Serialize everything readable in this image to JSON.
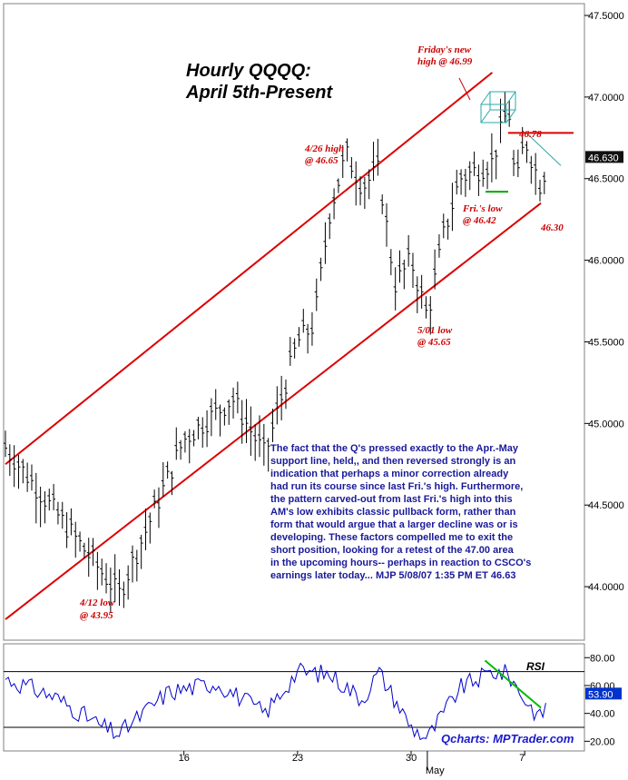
{
  "chart_data": [
    {
      "type": "candlestick",
      "title_line1": "Hourly QQQQ:",
      "title_line2": "April 5th-Present",
      "ylim": [
        43.7,
        47.55
      ],
      "y_ticks": [
        "47.5000",
        "47.0000",
        "46.5000",
        "46.0000",
        "45.5000",
        "45.0000",
        "44.5000",
        "44.0000"
      ],
      "y_tick_values": [
        47.5,
        47.0,
        46.5,
        46.0,
        45.5,
        45.0,
        44.5,
        44.0
      ],
      "x_ticks": [
        "16",
        "23",
        "30",
        "7"
      ],
      "x_month_label": "May",
      "last_price_label": "46.630",
      "last_price": 46.63,
      "annotations": [
        {
          "line1": "Friday's new",
          "line2": "high @ 46.99"
        },
        {
          "line1": "4/26 high",
          "line2": "@ 46.65"
        },
        {
          "line1": "46.78"
        },
        {
          "line1": "Fri.'s low",
          "line2": "@ 46.42"
        },
        {
          "line1": "46.30"
        },
        {
          "line1": "5/01 low",
          "line2": "@ 45.65"
        },
        {
          "line1": "4/12 low",
          "line2": "@ 43.95"
        }
      ],
      "anchors": [
        {
          "date": "Apr 5",
          "value": 44.85
        },
        {
          "date": "Apr 12",
          "value": 43.95
        },
        {
          "date": "Apr 16",
          "value": 44.9
        },
        {
          "date": "Apr 19",
          "value": 45.15
        },
        {
          "date": "Apr 21",
          "value": 44.8
        },
        {
          "date": "Apr 23",
          "value": 45.5
        },
        {
          "date": "Apr 24",
          "value": 45.6
        },
        {
          "date": "Apr 25",
          "value": 46.3
        },
        {
          "date": "Apr 26",
          "value": 46.65
        },
        {
          "date": "Apr 27",
          "value": 46.45
        },
        {
          "date": "Apr 28",
          "value": 46.55
        },
        {
          "date": "Apr 29",
          "value": 45.85
        },
        {
          "date": "Apr 30",
          "value": 46.0
        },
        {
          "date": "May 1",
          "value": 45.65
        },
        {
          "date": "May 2",
          "value": 46.15
        },
        {
          "date": "May 3",
          "value": 46.5
        },
        {
          "date": "May 5",
          "value": 46.6
        },
        {
          "date": "May 6",
          "value": 46.95
        },
        {
          "date": "May 6",
          "value": 46.42
        },
        {
          "date": "May 7",
          "value": 46.75
        },
        {
          "date": "May 8",
          "value": 46.45
        },
        {
          "date": "May 8",
          "value": 46.63
        }
      ],
      "channel_upper": [
        {
          "date": "Apr 5",
          "value": 44.75
        },
        {
          "date": "May 5",
          "value": 47.15
        }
      ],
      "channel_lower": [
        {
          "date": "Apr 5",
          "value": 43.8
        },
        {
          "date": "May 8",
          "value": 46.35
        }
      ],
      "resistance_level": 46.78,
      "support_level": 46.42,
      "commentary": [
        "The fact that the Q's pressed exactly to the Apr.-May",
        "support line, held,, and then reversed strongly is an",
        "indication that perhaps a minor correction already",
        "had run its course since last Fri.'s high. Furthermore,",
        "the pattern carved-out from last Fri.'s high into this",
        "AM's low exhibits classic pullback form, rather than",
        "form that would argue that a larger decline was or is",
        "developing. These factors compelled me to exit the",
        "short position, looking for a retest of the 47.00 area",
        "in the upcoming hours-- perhaps in reaction to CSCO's",
        "earnings later today... MJP  5/08/07 1:35 PM ET 46.63"
      ]
    },
    {
      "type": "line",
      "label": "RSI",
      "ylim": [
        15,
        88
      ],
      "y_ticks": [
        "80.00",
        "60.00",
        "40.00",
        "20.00"
      ],
      "y_tick_values": [
        80,
        60,
        40,
        20
      ],
      "reference_levels": [
        30,
        70
      ],
      "last_value_label": "53.90",
      "last_value": 53.9,
      "anchors": [
        {
          "date": "Apr 5",
          "value": 65
        },
        {
          "date": "Apr 8",
          "value": 52
        },
        {
          "date": "Apr 11",
          "value": 30
        },
        {
          "date": "Apr 12",
          "value": 25
        },
        {
          "date": "Apr 15",
          "value": 55
        },
        {
          "date": "Apr 18",
          "value": 62
        },
        {
          "date": "Apr 21",
          "value": 40
        },
        {
          "date": "Apr 23",
          "value": 70
        },
        {
          "date": "Apr 25",
          "value": 68
        },
        {
          "date": "Apr 27",
          "value": 50
        },
        {
          "date": "Apr 28",
          "value": 70
        },
        {
          "date": "Apr 30",
          "value": 30
        },
        {
          "date": "May 1",
          "value": 22
        },
        {
          "date": "May 3",
          "value": 58
        },
        {
          "date": "May 5",
          "value": 70
        },
        {
          "date": "May 6",
          "value": 68
        },
        {
          "date": "May 7",
          "value": 50
        },
        {
          "date": "May 8",
          "value": 36
        },
        {
          "date": "May 8",
          "value": 53.9
        }
      ],
      "trendline": [
        {
          "date": "May 5",
          "value": 78
        },
        {
          "date": "May 8",
          "value": 44
        }
      ]
    }
  ],
  "watermark": "Qcharts: MPTrader.com",
  "colors": {
    "candle": "#000000",
    "channel": "#dd0000",
    "level_high": "#dd0000",
    "level_low": "#00aa00",
    "rsi_line": "#0000cc",
    "rsi_trend": "#00bb00",
    "box": "#2aa8a8",
    "commentary": "#1a1a99",
    "annotation": "#cc0000",
    "price_tag": "#111111",
    "rsi_tag": "#0033cc"
  }
}
